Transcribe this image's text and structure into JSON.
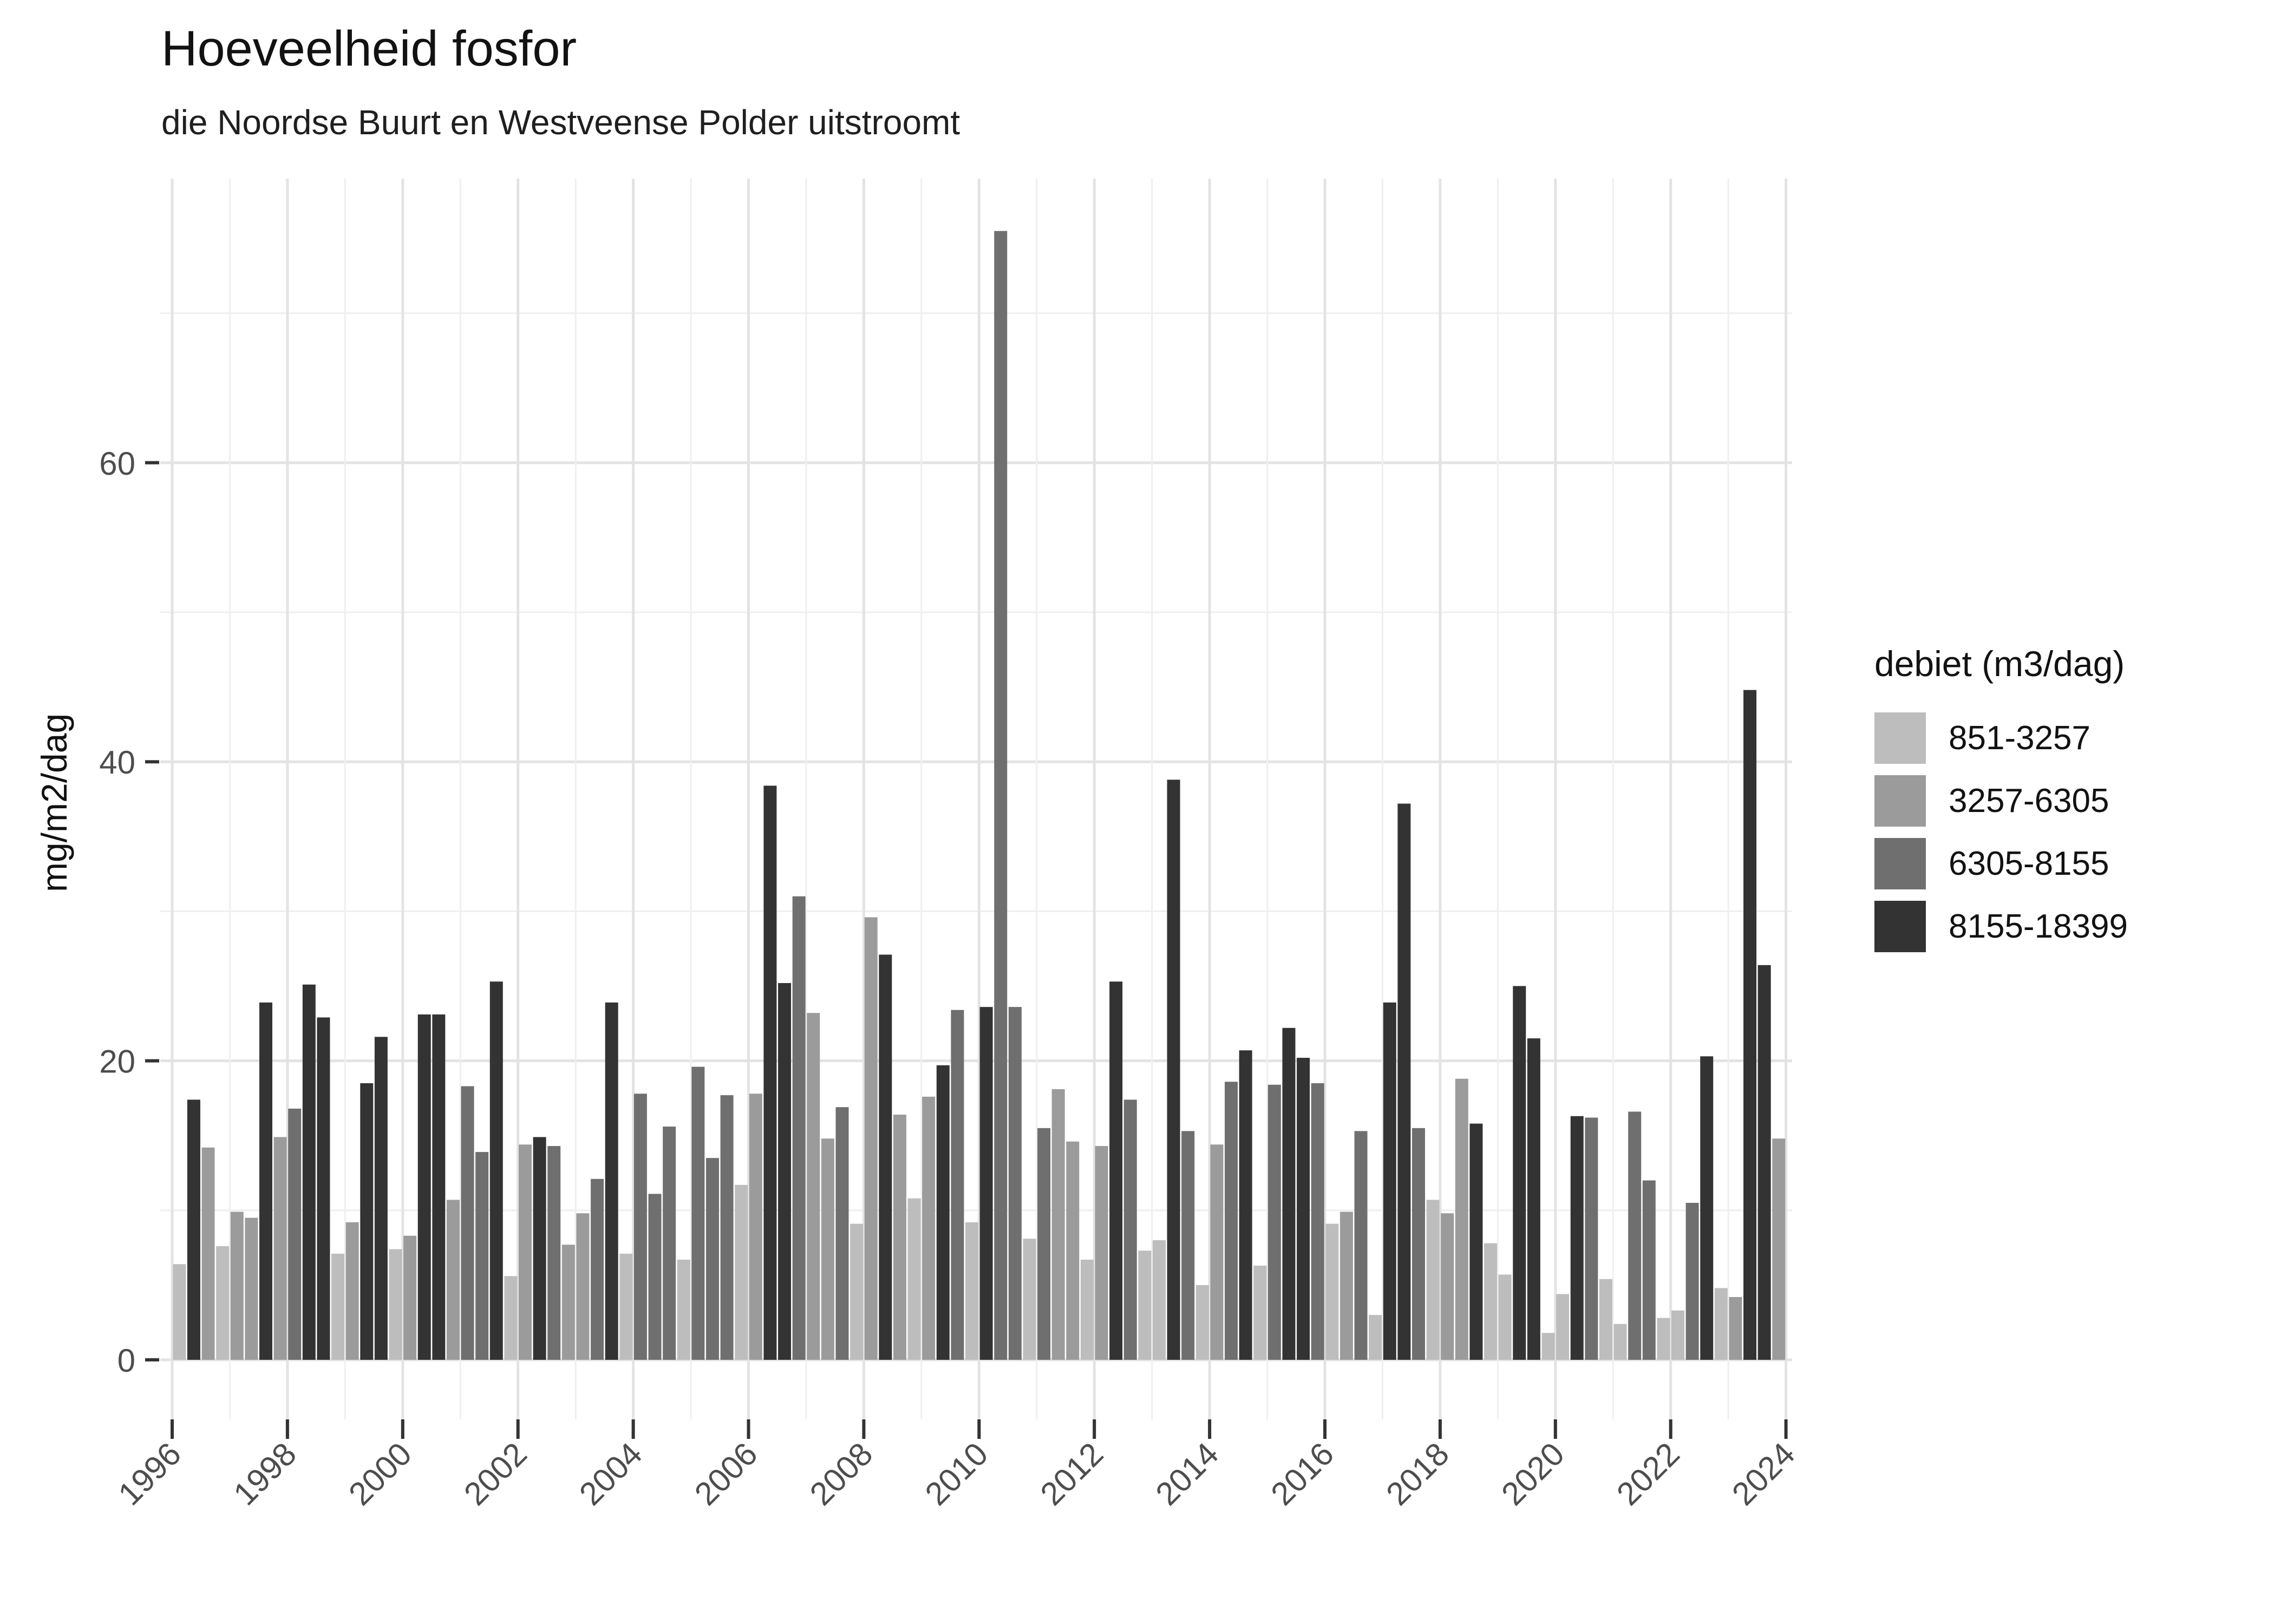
{
  "header": {
    "title": "Hoeveelheid fosfor",
    "subtitle": "die Noordse Buurt en Westveense Polder uitstroomt"
  },
  "legend": {
    "title": "debiet (m3/dag)",
    "entries": [
      {
        "label": "851-3257",
        "color": "#bdbdbd"
      },
      {
        "label": "3257-6305",
        "color": "#9b9b9b"
      },
      {
        "label": "6305-8155",
        "color": "#6f6f6f"
      },
      {
        "label": "8155-18399",
        "color": "#333333"
      }
    ]
  },
  "chart_data": {
    "type": "bar",
    "title": "Hoeveelheid fosfor",
    "subtitle": "die Noordse Buurt en Westveense Polder uitstroomt",
    "xlabel": "",
    "ylabel": "mg/m2/dag",
    "legend_title": "debiet (m3/dag)",
    "legend_position": "right",
    "grid": "on",
    "ylim": [
      0,
      79
    ],
    "y_major_ticks": [
      0,
      20,
      40,
      60
    ],
    "y_minor_ticks": [
      10,
      30,
      50,
      70
    ],
    "x_major_years": [
      1996,
      1998,
      2000,
      2002,
      2004,
      2006,
      2008,
      2010,
      2012,
      2014,
      2016,
      2018,
      2020,
      2022,
      2024
    ],
    "series_note": "bars = [year, quarter, value mg/m2/dag, debiet-category-index into legend entries]",
    "bars": [
      [
        1996,
        1,
        6.4,
        0
      ],
      [
        1996,
        2,
        17.4,
        3
      ],
      [
        1996,
        3,
        14.2,
        1
      ],
      [
        1996,
        4,
        7.6,
        0
      ],
      [
        1997,
        1,
        9.9,
        1
      ],
      [
        1997,
        2,
        9.5,
        1
      ],
      [
        1997,
        3,
        23.9,
        3
      ],
      [
        1997,
        4,
        14.9,
        1
      ],
      [
        1998,
        1,
        16.8,
        2
      ],
      [
        1998,
        2,
        25.1,
        3
      ],
      [
        1998,
        3,
        22.9,
        3
      ],
      [
        1998,
        4,
        7.1,
        0
      ],
      [
        1999,
        1,
        9.2,
        1
      ],
      [
        1999,
        2,
        18.5,
        3
      ],
      [
        1999,
        3,
        21.6,
        3
      ],
      [
        1999,
        4,
        7.4,
        0
      ],
      [
        2000,
        1,
        8.3,
        1
      ],
      [
        2000,
        2,
        23.1,
        3
      ],
      [
        2000,
        3,
        23.1,
        3
      ],
      [
        2000,
        4,
        10.7,
        1
      ],
      [
        2001,
        1,
        18.3,
        2
      ],
      [
        2001,
        2,
        13.9,
        2
      ],
      [
        2001,
        3,
        25.3,
        3
      ],
      [
        2001,
        4,
        5.6,
        0
      ],
      [
        2002,
        1,
        14.4,
        1
      ],
      [
        2002,
        2,
        14.9,
        3
      ],
      [
        2002,
        3,
        14.3,
        2
      ],
      [
        2002,
        4,
        7.7,
        1
      ],
      [
        2003,
        1,
        9.8,
        1
      ],
      [
        2003,
        2,
        12.1,
        2
      ],
      [
        2003,
        3,
        23.9,
        3
      ],
      [
        2003,
        4,
        7.1,
        0
      ],
      [
        2004,
        1,
        17.8,
        2
      ],
      [
        2004,
        2,
        11.1,
        2
      ],
      [
        2004,
        3,
        15.6,
        2
      ],
      [
        2004,
        4,
        6.7,
        0
      ],
      [
        2005,
        1,
        19.6,
        2
      ],
      [
        2005,
        2,
        13.5,
        2
      ],
      [
        2005,
        3,
        17.7,
        2
      ],
      [
        2005,
        4,
        11.7,
        0
      ],
      [
        2006,
        1,
        17.8,
        1
      ],
      [
        2006,
        2,
        38.4,
        3
      ],
      [
        2006,
        3,
        25.2,
        3
      ],
      [
        2006,
        4,
        31.0,
        2
      ],
      [
        2007,
        1,
        23.2,
        1
      ],
      [
        2007,
        2,
        14.8,
        1
      ],
      [
        2007,
        3,
        16.9,
        2
      ],
      [
        2007,
        4,
        9.1,
        0
      ],
      [
        2008,
        1,
        29.6,
        1
      ],
      [
        2008,
        2,
        27.1,
        3
      ],
      [
        2008,
        3,
        16.4,
        1
      ],
      [
        2008,
        4,
        10.8,
        0
      ],
      [
        2009,
        1,
        17.6,
        1
      ],
      [
        2009,
        2,
        19.7,
        3
      ],
      [
        2009,
        3,
        23.4,
        2
      ],
      [
        2009,
        4,
        9.2,
        0
      ],
      [
        2010,
        1,
        23.6,
        3
      ],
      [
        2010,
        2,
        75.5,
        2
      ],
      [
        2010,
        3,
        23.6,
        2
      ],
      [
        2010,
        4,
        8.1,
        0
      ],
      [
        2011,
        1,
        15.5,
        2
      ],
      [
        2011,
        2,
        18.1,
        1
      ],
      [
        2011,
        3,
        14.6,
        1
      ],
      [
        2011,
        4,
        6.7,
        0
      ],
      [
        2012,
        1,
        14.3,
        1
      ],
      [
        2012,
        2,
        25.3,
        3
      ],
      [
        2012,
        3,
        17.4,
        2
      ],
      [
        2012,
        4,
        7.3,
        0
      ],
      [
        2013,
        1,
        8.0,
        0
      ],
      [
        2013,
        2,
        38.8,
        3
      ],
      [
        2013,
        3,
        15.3,
        2
      ],
      [
        2013,
        4,
        5.0,
        0
      ],
      [
        2014,
        1,
        14.4,
        1
      ],
      [
        2014,
        2,
        18.6,
        2
      ],
      [
        2014,
        3,
        20.7,
        3
      ],
      [
        2014,
        4,
        6.3,
        0
      ],
      [
        2015,
        1,
        18.4,
        2
      ],
      [
        2015,
        2,
        22.2,
        3
      ],
      [
        2015,
        3,
        20.2,
        3
      ],
      [
        2015,
        4,
        18.5,
        2
      ],
      [
        2016,
        1,
        9.1,
        0
      ],
      [
        2016,
        2,
        9.9,
        1
      ],
      [
        2016,
        3,
        15.3,
        2
      ],
      [
        2016,
        4,
        3.0,
        0
      ],
      [
        2017,
        1,
        23.9,
        3
      ],
      [
        2017,
        2,
        37.2,
        3
      ],
      [
        2017,
        3,
        15.5,
        2
      ],
      [
        2017,
        4,
        10.7,
        0
      ],
      [
        2018,
        1,
        9.8,
        1
      ],
      [
        2018,
        2,
        18.8,
        1
      ],
      [
        2018,
        3,
        15.8,
        3
      ],
      [
        2018,
        4,
        7.8,
        0
      ],
      [
        2019,
        1,
        5.7,
        0
      ],
      [
        2019,
        2,
        25.0,
        3
      ],
      [
        2019,
        3,
        21.5,
        3
      ],
      [
        2019,
        4,
        1.8,
        0
      ],
      [
        2020,
        1,
        4.4,
        0
      ],
      [
        2020,
        2,
        16.3,
        3
      ],
      [
        2020,
        3,
        16.2,
        2
      ],
      [
        2020,
        4,
        5.4,
        0
      ],
      [
        2021,
        1,
        2.4,
        0
      ],
      [
        2021,
        2,
        16.6,
        2
      ],
      [
        2021,
        3,
        12.0,
        2
      ],
      [
        2021,
        4,
        2.8,
        0
      ],
      [
        2022,
        1,
        3.3,
        0
      ],
      [
        2022,
        2,
        10.5,
        2
      ],
      [
        2022,
        3,
        20.3,
        3
      ],
      [
        2022,
        4,
        4.8,
        0
      ],
      [
        2023,
        1,
        4.2,
        1
      ],
      [
        2023,
        2,
        44.8,
        3
      ],
      [
        2023,
        3,
        26.4,
        3
      ],
      [
        2023,
        4,
        14.8,
        1
      ]
    ]
  }
}
